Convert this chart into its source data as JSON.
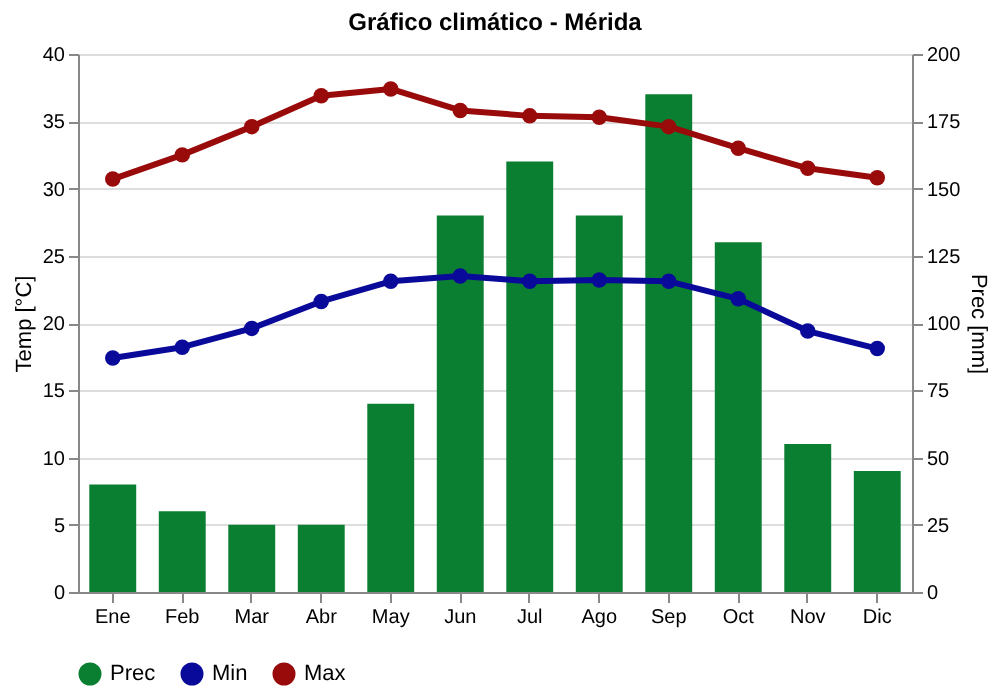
{
  "chart_data": {
    "type": "line",
    "title": "Gráfico climático - Mérida",
    "ylabel": "Temp [°C]",
    "y2label": "Prec [mm]",
    "categories": [
      "Ene",
      "Feb",
      "Mar",
      "Abr",
      "May",
      "Jun",
      "Jul",
      "Ago",
      "Sep",
      "Oct",
      "Nov",
      "Dic"
    ],
    "series": [
      {
        "name": "Prec",
        "type": "bar",
        "axis": "y2",
        "color": "#0b7f31",
        "values": [
          40,
          30,
          25,
          25,
          70,
          140,
          160,
          140,
          185,
          130,
          55,
          45
        ]
      },
      {
        "name": "Min",
        "color": "#0a0a9a",
        "values": [
          17.4,
          18.2,
          19.6,
          21.6,
          23.1,
          23.5,
          23.1,
          23.2,
          23.1,
          21.8,
          19.4,
          18.1
        ]
      },
      {
        "name": "Max",
        "color": "#990a0a",
        "values": [
          30.7,
          32.5,
          34.6,
          36.9,
          37.4,
          35.8,
          35.4,
          35.3,
          34.6,
          33.0,
          31.5,
          30.8
        ]
      }
    ],
    "ylim": [
      0,
      40
    ],
    "yticks": [
      0,
      5,
      10,
      15,
      20,
      25,
      30,
      35,
      40
    ],
    "y2lim": [
      0,
      200
    ],
    "y2ticks": [
      0,
      25,
      50,
      75,
      100,
      125,
      150,
      175,
      200
    ],
    "grid": true,
    "legend": "bottom",
    "marker": "circle",
    "line_style": "solid"
  }
}
